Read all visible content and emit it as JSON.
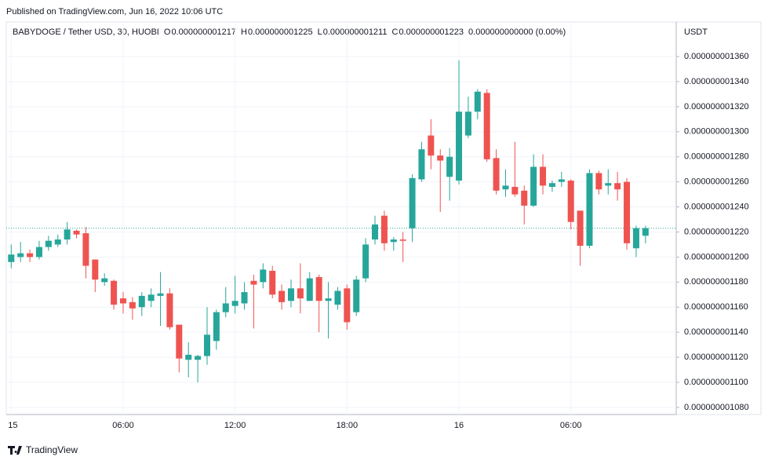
{
  "published": "Published on TradingView.com, Jun 16, 2022 10:06 UTC",
  "footer": "TradingView",
  "chart_data": {
    "type": "candlestick",
    "title": "BABYDOGE / Tether USD, 30, HUOBI",
    "legend": [
      {
        "key": "O",
        "text": "0.000000001217"
      },
      {
        "key": "H",
        "text": "0.000000001225"
      },
      {
        "key": "L",
        "text": "0.000000001211"
      },
      {
        "key": "C",
        "text": "0.000000001223"
      }
    ],
    "change": "0.000000000000 (0.00%)",
    "y_axis_label": "USDT",
    "up_color": "#26a69a",
    "down_color": "#ef5350",
    "last_price": 1.223e-09,
    "grid": true,
    "categories": [
      "15",
      null,
      null,
      null,
      null,
      null,
      null,
      null,
      null,
      null,
      null,
      null,
      "06:00",
      null,
      null,
      null,
      null,
      null,
      null,
      null,
      null,
      null,
      null,
      null,
      "12:00",
      null,
      null,
      null,
      null,
      null,
      null,
      null,
      null,
      null,
      null,
      null,
      "18:00",
      null,
      null,
      null,
      null,
      null,
      null,
      null,
      null,
      null,
      null,
      null,
      "16",
      null,
      null,
      null,
      null,
      null,
      null,
      null,
      null,
      null,
      null,
      null,
      "06:00",
      null,
      null,
      null,
      null,
      null,
      null,
      null,
      null
    ],
    "open": [
      1.196e-09,
      1.2e-09,
      1.203e-09,
      1.2e-09,
      1.208e-09,
      1.21e-09,
      1.214e-09,
      1.221e-09,
      1.219e-09,
      1.198e-09,
      1.18e-09,
      1.181e-09,
      1.167e-09,
      1.164e-09,
      1.16e-09,
      1.165e-09,
      1.169e-09,
      1.171e-09,
      1.146e-09,
      1.118e-09,
      1.118e-09,
      1.121e-09,
      1.133e-09,
      1.156e-09,
      1.161e-09,
      1.163e-09,
      1.181e-09,
      1.18e-09,
      1.189e-09,
      1.173e-09,
      1.165e-09,
      1.175e-09,
      1.165e-09,
      1.184e-09,
      1.165e-09,
      1.162e-09,
      1.175e-09,
      1.156e-09,
      1.183e-09,
      1.214e-09,
      1.233e-09,
      1.212e-09,
      1.214e-09,
      1.223e-09,
      1.262e-09,
      1.297e-09,
      1.281e-09,
      1.264e-09,
      1.261e-09,
      1.297e-09,
      1.316e-09,
      1.331e-09,
      1.279e-09,
      1.254e-09,
      1.256e-09,
      1.253e-09,
      1.241e-09,
      1.272e-09,
      1.256e-09,
      1.26e-09,
      1.261e-09,
      1.237e-09,
      1.209e-09,
      1.267e-09,
      1.257e-09,
      1.259e-09,
      1.26e-09,
      1.207e-09,
      1.217e-09
    ],
    "high": [
      1.21e-09,
      1.212e-09,
      1.206e-09,
      1.213e-09,
      1.217e-09,
      1.218e-09,
      1.228e-09,
      1.222e-09,
      1.224e-09,
      1.198e-09,
      1.187e-09,
      1.182e-09,
      1.172e-09,
      1.168e-09,
      1.172e-09,
      1.175e-09,
      1.188e-09,
      1.175e-09,
      1.146e-09,
      1.132e-09,
      1.122e-09,
      1.16e-09,
      1.158e-09,
      1.176e-09,
      1.185e-09,
      1.18e-09,
      1.186e-09,
      1.195e-09,
      1.193e-09,
      1.178e-09,
      1.182e-09,
      1.195e-09,
      1.188e-09,
      1.186e-09,
      1.18e-09,
      1.176e-09,
      1.178e-09,
      1.185e-09,
      1.215e-09,
      1.233e-09,
      1.237e-09,
      1.216e-09,
      1.22e-09,
      1.266e-09,
      1.292e-09,
      1.31e-09,
      1.286e-09,
      1.287e-09,
      1.357e-09,
      1.328e-09,
      1.334e-09,
      1.334e-09,
      1.286e-09,
      1.27e-09,
      1.292e-09,
      1.257e-09,
      1.282e-09,
      1.282e-09,
      1.261e-09,
      1.268e-09,
      1.262e-09,
      1.237e-09,
      1.27e-09,
      1.269e-09,
      1.27e-09,
      1.268e-09,
      1.263e-09,
      1.225e-09,
      1.225e-09
    ],
    "low": [
      1.191e-09,
      1.196e-09,
      1.196e-09,
      1.198e-09,
      1.205e-09,
      1.208e-09,
      1.21e-09,
      1.215e-09,
      1.183e-09,
      1.172e-09,
      1.177e-09,
      1.158e-09,
      1.155e-09,
      1.15e-09,
      1.153e-09,
      1.16e-09,
      1.145e-09,
      1.142e-09,
      1.108e-09,
      1.104e-09,
      1.1e-09,
      1.114e-09,
      1.126e-09,
      1.152e-09,
      1.155e-09,
      1.158e-09,
      1.143e-09,
      1.175e-09,
      1.167e-09,
      1.158e-09,
      1.16e-09,
      1.155e-09,
      1.165e-09,
      1.14e-09,
      1.135e-09,
      1.158e-09,
      1.142e-09,
      1.153e-09,
      1.18e-09,
      1.21e-09,
      1.205e-09,
      1.205e-09,
      1.196e-09,
      1.212e-09,
      1.26e-09,
      1.27e-09,
      1.236e-09,
      1.245e-09,
      1.258e-09,
      1.295e-09,
      1.31e-09,
      1.276e-09,
      1.25e-09,
      1.248e-09,
      1.248e-09,
      1.226e-09,
      1.24e-09,
      1.25e-09,
      1.252e-09,
      1.256e-09,
      1.222e-09,
      1.193e-09,
      1.207e-09,
      1.25e-09,
      1.25e-09,
      1.245e-09,
      1.206e-09,
      1.2e-09,
      1.211e-09
    ],
    "close": [
      1.202e-09,
      1.203e-09,
      1.2e-09,
      1.208e-09,
      1.213e-09,
      1.214e-09,
      1.222e-09,
      1.218e-09,
      1.193e-09,
      1.182e-09,
      1.183e-09,
      1.162e-09,
      1.163e-09,
      1.159e-09,
      1.169e-09,
      1.17e-09,
      1.171e-09,
      1.144e-09,
      1.119e-09,
      1.122e-09,
      1.121e-09,
      1.138e-09,
      1.156e-09,
      1.163e-09,
      1.165e-09,
      1.172e-09,
      1.178e-09,
      1.19e-09,
      1.17e-09,
      1.164e-09,
      1.175e-09,
      1.167e-09,
      1.183e-09,
      1.165e-09,
      1.167e-09,
      1.173e-09,
      1.148e-09,
      1.182e-09,
      1.21e-09,
      1.226e-09,
      1.211e-09,
      1.214e-09,
      1.213e-09,
      1.263e-09,
      1.286e-09,
      1.281e-09,
      1.277e-09,
      1.28e-09,
      1.316e-09,
      1.316e-09,
      1.332e-09,
      1.278e-09,
      1.253e-09,
      1.257e-09,
      1.25e-09,
      1.241e-09,
      1.272e-09,
      1.257e-09,
      1.259e-09,
      1.262e-09,
      1.228e-09,
      1.209e-09,
      1.267e-09,
      1.254e-09,
      1.259e-09,
      1.254e-09,
      1.211e-09,
      1.223e-09,
      1.223e-09
    ],
    "ylim": [
      1.0743e-09,
      1.3876e-09
    ],
    "yticks": [
      {
        "value": 1.08e-09,
        "label": "0.000000001080"
      },
      {
        "value": 1.1e-09,
        "label": "0.000000001100"
      },
      {
        "value": 1.12e-09,
        "label": "0.000000001120"
      },
      {
        "value": 1.14e-09,
        "label": "0.000000001140"
      },
      {
        "value": 1.16e-09,
        "label": "0.000000001160"
      },
      {
        "value": 1.18e-09,
        "label": "0.000000001180"
      },
      {
        "value": 1.2e-09,
        "label": "0.000000001200"
      },
      {
        "value": 1.22e-09,
        "label": "0.000000001220"
      },
      {
        "value": 1.24e-09,
        "label": "0.000000001240"
      },
      {
        "value": 1.26e-09,
        "label": "0.000000001260"
      },
      {
        "value": 1.28e-09,
        "label": "0.000000001280"
      },
      {
        "value": 1.3e-09,
        "label": "0.000000001300"
      },
      {
        "value": 1.32e-09,
        "label": "0.000000001320"
      },
      {
        "value": 1.34e-09,
        "label": "0.000000001340"
      },
      {
        "value": 1.36e-09,
        "label": "0.000000001360"
      }
    ]
  }
}
